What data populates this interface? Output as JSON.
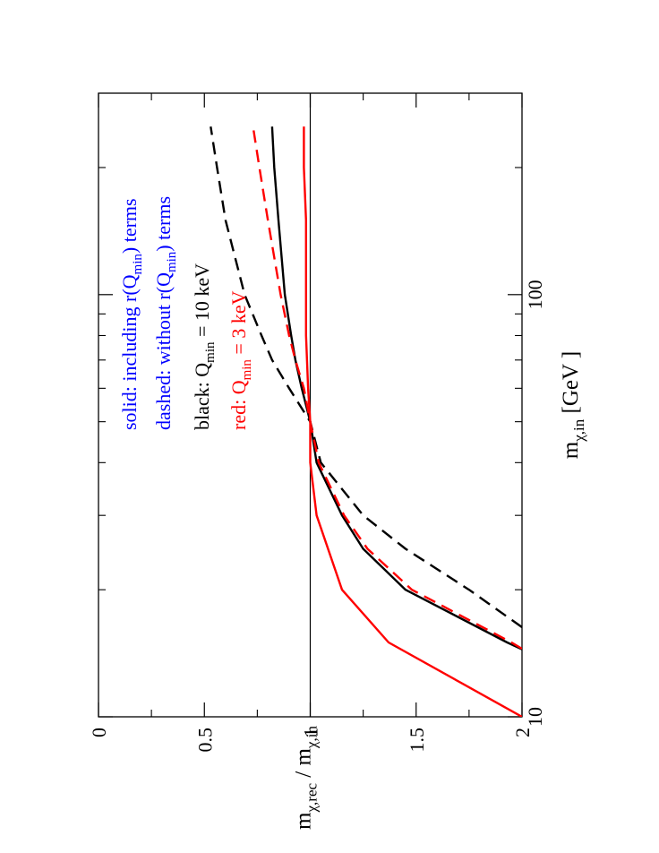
{
  "chart_data": {
    "type": "line",
    "orientation": "rotated-90-ccw",
    "x_scale": "log",
    "xlabel": "m",
    "xlabel_sub": "χ,in",
    "xlabel_unit": "[GeV ]",
    "ylabel_parts": [
      "m",
      "χ,rec",
      " / m",
      "χ,in"
    ],
    "xlim": [
      10,
      300
    ],
    "ylim": [
      0,
      2
    ],
    "x_tick_labels": [
      {
        "value": 10,
        "label": "10"
      },
      {
        "value": 100,
        "label": "100"
      }
    ],
    "x_minor_ticks": [
      20,
      30,
      40,
      50,
      60,
      70,
      80,
      90,
      200
    ],
    "y_tick_labels": [
      {
        "value": 0,
        "label": "0"
      },
      {
        "value": 0.5,
        "label": "0.5"
      },
      {
        "value": 1,
        "label": "1"
      },
      {
        "value": 1.5,
        "label": "1.5"
      },
      {
        "value": 2,
        "label": "2"
      }
    ],
    "y_minor_ticks": [
      0.25,
      0.75,
      1.25,
      1.75
    ],
    "reference_line": {
      "y": 1,
      "color": "#000000"
    },
    "series": [
      {
        "name": "black solid (with r(Qmin), Qmin = 10 keV)",
        "color": "#000000",
        "dash": "solid",
        "x": [
          14.45,
          15,
          20,
          25,
          30,
          40,
          50,
          60,
          70,
          80,
          100,
          150,
          200,
          250
        ],
        "y": [
          2.0,
          1.93,
          1.45,
          1.25,
          1.15,
          1.03,
          1.0,
          0.96,
          0.93,
          0.91,
          0.88,
          0.85,
          0.83,
          0.82
        ]
      },
      {
        "name": "black dashed (without r(Qmin), Qmin = 10 keV)",
        "color": "#000000",
        "dash": "dashed",
        "x": [
          16.3,
          20,
          25,
          30,
          40,
          50,
          60,
          70,
          80,
          100,
          150,
          200,
          250
        ],
        "y": [
          2.0,
          1.75,
          1.45,
          1.25,
          1.05,
          1.0,
          0.9,
          0.82,
          0.77,
          0.69,
          0.6,
          0.56,
          0.53
        ]
      },
      {
        "name": "red solid (with r(Qmin), Qmin = 3 keV)",
        "color": "#ff0000",
        "dash": "solid",
        "x": [
          10,
          15,
          20,
          30,
          40,
          50,
          60,
          80,
          100,
          150,
          200,
          250
        ],
        "y": [
          2.0,
          1.37,
          1.15,
          1.03,
          1.0,
          1.0,
          0.99,
          0.98,
          0.98,
          0.98,
          0.97,
          0.97
        ]
      },
      {
        "name": "red dashed (without r(Qmin), Qmin = 3 keV)",
        "color": "#ff0000",
        "dash": "dashed",
        "x": [
          14.5,
          15,
          20,
          25,
          30,
          40,
          50,
          60,
          70,
          80,
          100,
          150,
          200,
          250
        ],
        "y": [
          2.0,
          1.95,
          1.48,
          1.27,
          1.16,
          1.04,
          1.0,
          0.97,
          0.93,
          0.9,
          0.86,
          0.8,
          0.76,
          0.73
        ]
      }
    ],
    "legend": [
      {
        "parts": [
          [
            "solid: including r(Q",
            ""
          ],
          [
            "min",
            "sub"
          ],
          [
            ") terms",
            ""
          ]
        ],
        "color": "#0000ff"
      },
      {
        "parts": [
          [
            "dashed: without r(Q",
            ""
          ],
          [
            "min",
            "sub"
          ],
          [
            ") terms",
            ""
          ]
        ],
        "color": "#0000ff"
      },
      {
        "parts": [
          [
            "black: Q",
            ""
          ],
          [
            "min",
            "sub"
          ],
          [
            " = 10 keV",
            ""
          ]
        ],
        "color": "#000000"
      },
      {
        "parts": [
          [
            "red: Q",
            ""
          ],
          [
            "min",
            "sub"
          ],
          [
            " = 3 keV",
            ""
          ]
        ],
        "color": "#ff0000"
      }
    ]
  }
}
